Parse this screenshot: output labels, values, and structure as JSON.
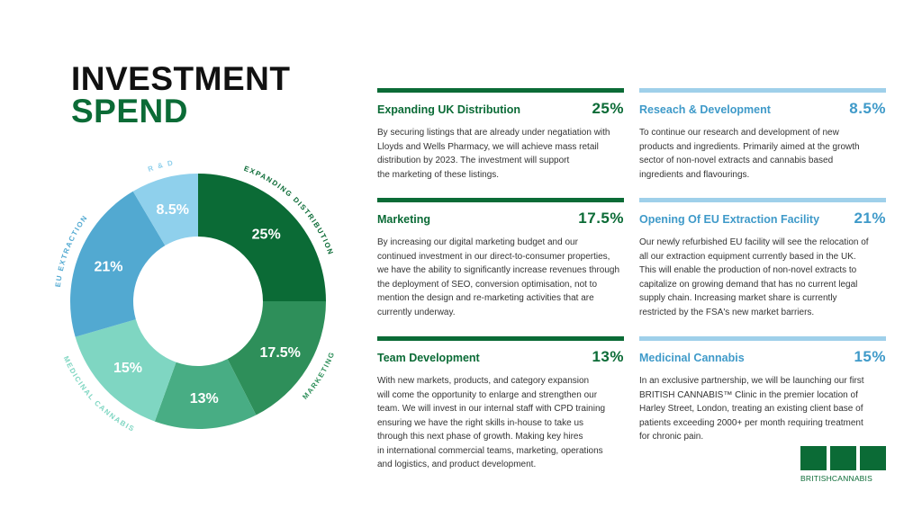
{
  "title": {
    "line1": "INVESTMENT",
    "line2": "SPEND"
  },
  "chart_data": {
    "type": "pie",
    "categories": [
      "Expanding Distribution",
      "Marketing",
      "Team Development",
      "Medicinal Cannabis",
      "EU Extraction",
      "R & D"
    ],
    "values": [
      25,
      17.5,
      13,
      15,
      21,
      8.5
    ],
    "slice_labels": [
      "25%",
      "17.5%",
      "13%",
      "15%",
      "21%",
      "8.5%"
    ],
    "outer_labels": [
      "EXPANDING DISTRIBUTION",
      "MARKETING",
      "",
      "MEDICINAL CANNABIS",
      "EU EXTRACTION",
      "R & D"
    ],
    "colors": [
      "#0b6b36",
      "#2e8f5a",
      "#48ad84",
      "#7fd6c2",
      "#52a9d1",
      "#8fd0ec"
    ],
    "donut": true
  },
  "sections": [
    {
      "name": "Expanding UK Distribution",
      "pct": "25%",
      "style": "dark",
      "lines": [
        "By securing listings that are already under negatiation with",
        "Lloyds and Wells Pharmacy, we will achieve mass retail",
        "distribution by 2023. The investment will support",
        "the marketing of these listings."
      ]
    },
    {
      "name": "Reseach & Development",
      "pct": "8.5%",
      "style": "light",
      "lines": [
        "To continue our research and development of new",
        "products and ingredients. Primarily aimed at the growth",
        "sector of non-novel extracts and cannabis based",
        "ingredients and flavourings."
      ]
    },
    {
      "name": "Marketing",
      "pct": "17.5%",
      "style": "dark",
      "lines": [
        "By increasing our digital marketing budget and our",
        "continued investment in our direct-to-consumer properties,",
        "we have the ability to significantly increase revenues through",
        "the deployment of SEO, conversion optimisation, not to",
        "mention the design and re-marketing activities that are",
        "currently underway."
      ]
    },
    {
      "name": "Opening Of EU Extraction Facility",
      "pct": "21%",
      "style": "light",
      "lines": [
        "Our newly refurbished EU facility will see the relocation of",
        "all our extraction equipment currently based in the UK.",
        "This will enable the production of non-novel extracts to",
        "capitalize on growing demand that has no current legal",
        "supply chain. Increasing market share is currently",
        "restricted by the FSA's new market barriers."
      ]
    },
    {
      "name": "Team Development",
      "pct": "13%",
      "style": "dark",
      "lines": [
        "With new markets, products, and category expansion",
        "will come the opportunity to enlarge and strengthen our",
        "team. We will invest in our internal staff with CPD training",
        "ensuring we have the right skills in-house to take us",
        "through this next phase of growth. Making key hires",
        "in international commercial teams, marketing, operations",
        "and logistics, and product development."
      ]
    },
    {
      "name": "Medicinal Cannabis",
      "pct": "15%",
      "style": "light",
      "lines": [
        "In an exclusive partnership, we will be launching our first",
        "BRITISH CANNABIS™ Clinic in the premier location of",
        "Harley Street, London, treating an existing client base of",
        "patients exceeding 2000+ per month requiring treatment",
        "for chronic pain."
      ]
    }
  ],
  "logo": {
    "brand": "BRITISHCANNABIS",
    "icons": [
      "flask-icon",
      "leaf-icon",
      "beaker-icon"
    ]
  }
}
